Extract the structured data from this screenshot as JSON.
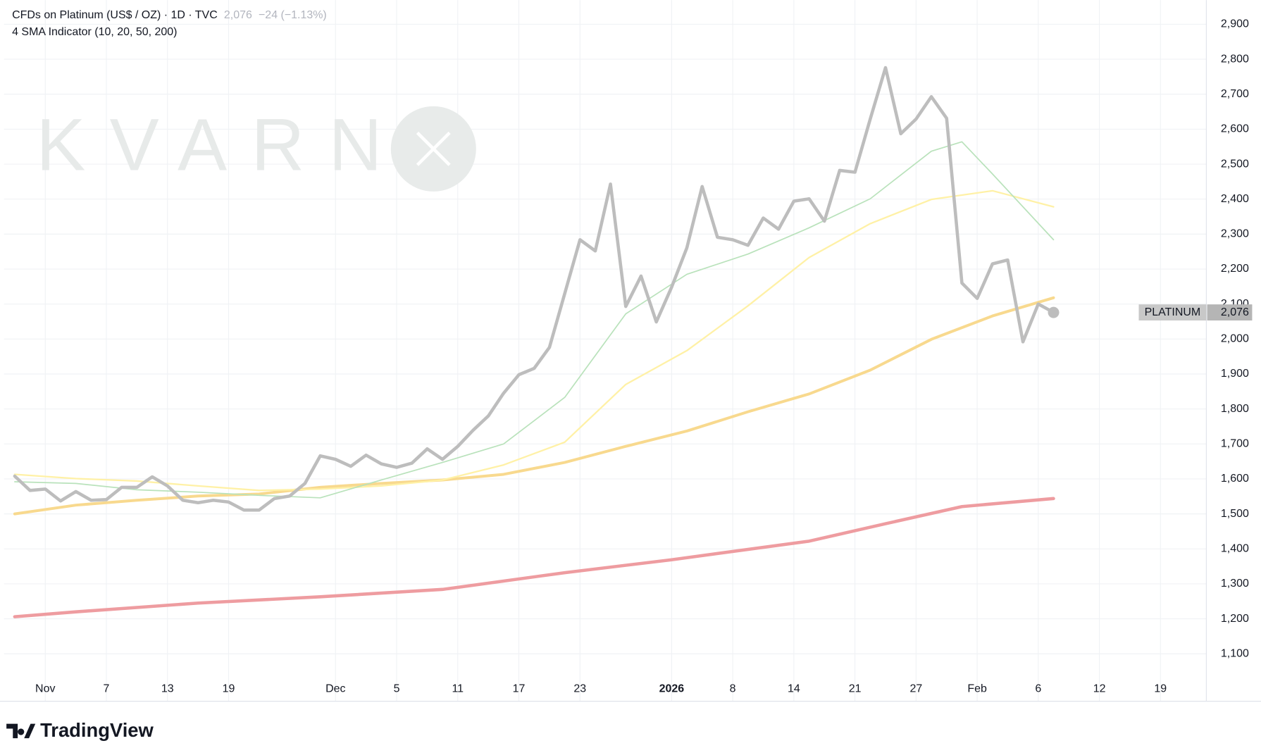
{
  "chart_data": {
    "type": "line",
    "title": "CFDs on Platinum (US$ / OZ) · 1D · TVC",
    "last_price_label": "2,076",
    "change_label": "−24 (−1.13%)",
    "subtitle": "4 SMA Indicator (10, 20, 50, 200)",
    "watermark": "KVARN",
    "source": "TradingView",
    "xlim": [
      -2.7,
      76
    ],
    "ylim": [
      1031,
      2969
    ],
    "grid": true,
    "xticks": [
      {
        "value": 0,
        "label": "Nov"
      },
      {
        "value": 4,
        "label": "7"
      },
      {
        "value": 8,
        "label": "13"
      },
      {
        "value": 12,
        "label": "19"
      },
      {
        "value": 19,
        "label": "Dec"
      },
      {
        "value": 23,
        "label": "5"
      },
      {
        "value": 27,
        "label": "11"
      },
      {
        "value": 31,
        "label": "17"
      },
      {
        "value": 35,
        "label": "23"
      },
      {
        "value": 41,
        "label": "2026"
      },
      {
        "value": 45,
        "label": "8"
      },
      {
        "value": 49,
        "label": "14"
      },
      {
        "value": 53,
        "label": "21"
      },
      {
        "value": 57,
        "label": "27"
      },
      {
        "value": 61,
        "label": "Feb"
      },
      {
        "value": 65,
        "label": "6"
      },
      {
        "value": 69,
        "label": "12"
      },
      {
        "value": 73,
        "label": "19"
      }
    ],
    "yticks": [
      {
        "value": 1100,
        "label": "1,100"
      },
      {
        "value": 1200,
        "label": "1,200"
      },
      {
        "value": 1300,
        "label": "1,300"
      },
      {
        "value": 1400,
        "label": "1,400"
      },
      {
        "value": 1500,
        "label": "1,500"
      },
      {
        "value": 1600,
        "label": "1,600"
      },
      {
        "value": 1700,
        "label": "1,700"
      },
      {
        "value": 1800,
        "label": "1,800"
      },
      {
        "value": 1900,
        "label": "1,900"
      },
      {
        "value": 2000,
        "label": "2,000"
      },
      {
        "value": 2100,
        "label": "2,100"
      },
      {
        "value": 2200,
        "label": "2,200"
      },
      {
        "value": 2300,
        "label": "2,300"
      },
      {
        "value": 2400,
        "label": "2,400"
      },
      {
        "value": 2500,
        "label": "2,500"
      },
      {
        "value": 2600,
        "label": "2,600"
      },
      {
        "value": 2700,
        "label": "2,700"
      },
      {
        "value": 2800,
        "label": "2,800"
      },
      {
        "value": 2900,
        "label": "2,900"
      }
    ],
    "series": [
      {
        "name": "PLATINUM",
        "color": "#bdbdbd",
        "width": 4,
        "x": [
          -2,
          -1,
          0,
          1,
          2,
          3,
          4,
          5,
          6,
          7,
          8,
          9,
          10,
          11,
          12,
          13,
          14,
          15,
          16,
          17,
          18,
          19,
          20,
          21,
          22,
          23,
          24,
          25,
          26,
          27,
          28,
          29,
          30,
          31,
          32,
          33,
          34,
          35,
          36,
          37,
          38,
          39,
          40,
          41,
          42,
          43,
          44,
          45,
          46,
          47,
          48,
          49,
          50,
          51,
          52,
          53,
          54,
          55,
          56,
          57,
          58,
          59,
          60,
          61,
          62,
          63,
          64,
          65,
          66
        ],
        "values": [
          1608,
          1567,
          1571,
          1537,
          1564,
          1539,
          1541,
          1576,
          1576,
          1606,
          1580,
          1539,
          1532,
          1539,
          1534,
          1511,
          1511,
          1544,
          1551,
          1587,
          1666,
          1656,
          1636,
          1668,
          1643,
          1633,
          1645,
          1686,
          1656,
          1693,
          1739,
          1780,
          1845,
          1898,
          1916,
          1976,
          2130,
          2284,
          2252,
          2443,
          2093,
          2180,
          2049,
          2148,
          2261,
          2436,
          2291,
          2284,
          2268,
          2346,
          2314,
          2394,
          2401,
          2337,
          2482,
          2477,
          2629,
          2776,
          2587,
          2629,
          2693,
          2631,
          2160,
          2116,
          2215,
          2226,
          1992,
          2100,
          2076
        ],
        "last_label": "2,076"
      },
      {
        "color": "#b9e2bb",
        "width": 1.5,
        "x": [
          -2,
          2,
          6,
          10,
          14,
          18,
          22,
          26,
          30,
          34,
          38,
          42,
          46,
          50,
          54,
          58,
          60,
          62,
          66
        ],
        "values": [
          1592,
          1587,
          1569,
          1562,
          1553,
          1546,
          1597,
          1647,
          1700,
          1833,
          2072,
          2185,
          2243,
          2318,
          2401,
          2537,
          2564,
          2472,
          2284
        ]
      },
      {
        "color": "#fff1a6",
        "width": 2,
        "x": [
          -2,
          2,
          6,
          10,
          14,
          18,
          22,
          26,
          30,
          34,
          38,
          42,
          46,
          50,
          54,
          58,
          62,
          66
        ],
        "values": [
          1613,
          1601,
          1594,
          1580,
          1567,
          1571,
          1580,
          1597,
          1640,
          1705,
          1870,
          1967,
          2095,
          2233,
          2330,
          2399,
          2424,
          2378
        ]
      },
      {
        "color": "#f8d98e",
        "width": 3.5,
        "x": [
          -2,
          2,
          6,
          10,
          14,
          18,
          22,
          26,
          30,
          34,
          38,
          42,
          46,
          50,
          54,
          58,
          62,
          66
        ],
        "values": [
          1500,
          1525,
          1539,
          1551,
          1557,
          1576,
          1587,
          1597,
          1613,
          1647,
          1693,
          1737,
          1792,
          1843,
          1911,
          1999,
          2066,
          2118
        ]
      },
      {
        "color": "#ee9ca0",
        "width": 4,
        "x": [
          -2,
          2,
          10,
          18,
          26,
          34,
          41,
          50,
          55,
          60,
          66
        ],
        "values": [
          1206,
          1220,
          1245,
          1263,
          1284,
          1332,
          1369,
          1422,
          1472,
          1521,
          1544
        ]
      }
    ]
  }
}
